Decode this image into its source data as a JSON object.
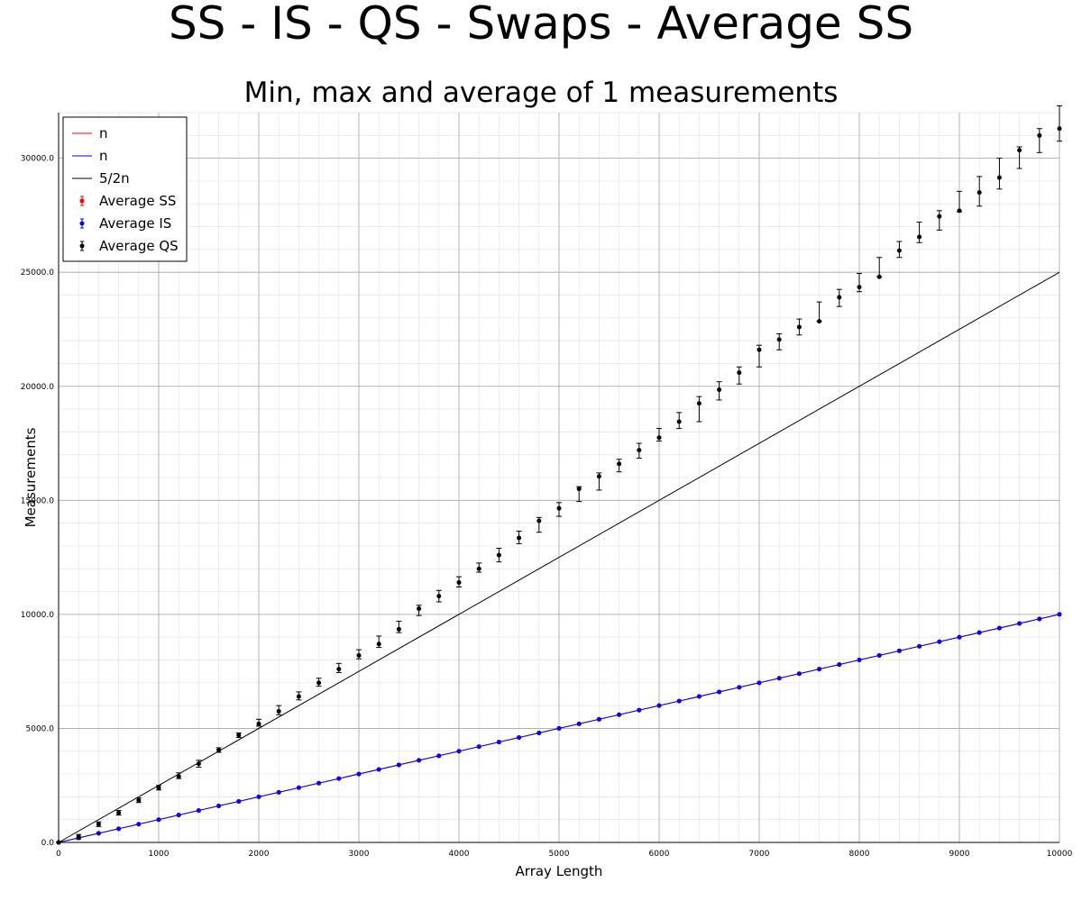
{
  "chart_data": {
    "type": "scatter",
    "title": "SS - IS - QS - Swaps - Average SS",
    "subtitle": "Min, max and average of 1 measurements",
    "xlabel": "Array Length",
    "ylabel": "Measurements",
    "xlim": [
      0,
      10000
    ],
    "ylim": [
      0,
      32000
    ],
    "x_ticks": [
      0,
      1000,
      2000,
      3000,
      4000,
      5000,
      6000,
      7000,
      8000,
      9000,
      10000
    ],
    "y_ticks": [
      0,
      5000,
      10000,
      15000,
      20000,
      25000,
      30000
    ],
    "x_tick_labels": [
      "0",
      "1000",
      "2000",
      "3000",
      "4000",
      "5000",
      "6000",
      "7000",
      "8000",
      "9000",
      "10000"
    ],
    "y_tick_labels": [
      "0.0",
      "5000.0",
      "10000.0",
      "15000.0",
      "20000.0",
      "25000.0",
      "30000.0"
    ],
    "grid": true,
    "legend_position": "top-left",
    "lines": [
      {
        "name": "n",
        "color": "#ff0000",
        "slope": 1
      },
      {
        "name": "n",
        "color": "#0000ff",
        "slope": 1
      },
      {
        "name": "5/2n",
        "color": "#000000",
        "slope": 2.5
      }
    ],
    "series": [
      {
        "name": "Average SS",
        "color": "#ff0000",
        "x": [
          0,
          200,
          400,
          600,
          800,
          1000,
          1200,
          1400,
          1600,
          1800,
          2000,
          2200,
          2400,
          2600,
          2800,
          3000,
          3200,
          3400,
          3600,
          3800,
          4000,
          4200,
          4400,
          4600,
          4800,
          5000,
          5200,
          5400,
          5600,
          5800,
          6000,
          6200,
          6400,
          6600,
          6800,
          7000,
          7200,
          7400,
          7600,
          7800,
          8000,
          8200,
          8400,
          8600,
          8800,
          9000,
          9200,
          9400,
          9600,
          9800,
          10000
        ],
        "y": [
          0,
          200,
          400,
          600,
          800,
          1000,
          1200,
          1400,
          1600,
          1800,
          2000,
          2200,
          2400,
          2600,
          2800,
          3000,
          3200,
          3400,
          3600,
          3800,
          4000,
          4200,
          4400,
          4600,
          4800,
          5000,
          5200,
          5400,
          5600,
          5800,
          6000,
          6200,
          6400,
          6600,
          6800,
          7000,
          7200,
          7400,
          7600,
          7800,
          8000,
          8200,
          8400,
          8600,
          8800,
          9000,
          9200,
          9400,
          9600,
          9800,
          10000
        ]
      },
      {
        "name": "Average IS",
        "color": "#0000ff",
        "x": [
          0,
          200,
          400,
          600,
          800,
          1000,
          1200,
          1400,
          1600,
          1800,
          2000,
          2200,
          2400,
          2600,
          2800,
          3000,
          3200,
          3400,
          3600,
          3800,
          4000,
          4200,
          4400,
          4600,
          4800,
          5000,
          5200,
          5400,
          5600,
          5800,
          6000,
          6200,
          6400,
          6600,
          6800,
          7000,
          7200,
          7400,
          7600,
          7800,
          8000,
          8200,
          8400,
          8600,
          8800,
          9000,
          9200,
          9400,
          9600,
          9800,
          10000
        ],
        "y": [
          0,
          200,
          400,
          600,
          800,
          1000,
          1200,
          1400,
          1600,
          1800,
          2000,
          2200,
          2400,
          2600,
          2800,
          3000,
          3200,
          3400,
          3600,
          3800,
          4000,
          4200,
          4400,
          4600,
          4800,
          5000,
          5200,
          5400,
          5600,
          5800,
          6000,
          6200,
          6400,
          6600,
          6800,
          7000,
          7200,
          7400,
          7600,
          7800,
          8000,
          8200,
          8400,
          8600,
          8800,
          9000,
          9200,
          9400,
          9600,
          9800,
          10000
        ]
      },
      {
        "name": "Average QS",
        "color": "#000000",
        "x": [
          0,
          200,
          400,
          600,
          800,
          1000,
          1200,
          1400,
          1600,
          1800,
          2000,
          2200,
          2400,
          2600,
          2800,
          3000,
          3200,
          3400,
          3600,
          3800,
          4000,
          4200,
          4400,
          4600,
          4800,
          5000,
          5200,
          5400,
          5600,
          5800,
          6000,
          6200,
          6400,
          6600,
          6800,
          7000,
          7200,
          7400,
          7600,
          7800,
          8000,
          8200,
          8400,
          8600,
          8800,
          9000,
          9200,
          9400,
          9600,
          9800,
          10000
        ],
        "y": [
          0,
          250,
          800,
          1300,
          1850,
          2400,
          2900,
          3450,
          4050,
          4700,
          5200,
          5750,
          6400,
          7000,
          7600,
          8200,
          8700,
          9350,
          10250,
          10800,
          11400,
          12000,
          12600,
          13350,
          14100,
          14650,
          15500,
          16050,
          16600,
          17200,
          17750,
          18450,
          19250,
          19850,
          20600,
          21600,
          22050,
          22600,
          22850,
          23900,
          24350,
          24800,
          25950,
          26550,
          27450,
          27700,
          28500,
          29150,
          30350,
          31000,
          31300
        ],
        "y_min": [
          0,
          150,
          700,
          1200,
          1750,
          2300,
          2800,
          3300,
          3950,
          4600,
          5100,
          5600,
          6250,
          6850,
          7450,
          8050,
          8550,
          9200,
          9950,
          10550,
          11200,
          11850,
          12300,
          13100,
          13600,
          14300,
          14950,
          15450,
          16250,
          16850,
          17600,
          18150,
          18450,
          19400,
          20100,
          20850,
          21600,
          22250,
          22850,
          23500,
          24150,
          24800,
          25650,
          26300,
          26850,
          27650,
          27900,
          28650,
          29550,
          30250,
          30750
        ],
        "y_max": [
          0,
          350,
          900,
          1400,
          1950,
          2500,
          3050,
          3600,
          4150,
          4800,
          5400,
          6000,
          6600,
          7200,
          7850,
          8450,
          9050,
          9700,
          10400,
          11050,
          11650,
          12250,
          12900,
          13650,
          14250,
          14900,
          15600,
          16200,
          16800,
          17500,
          18150,
          18850,
          19550,
          20200,
          20850,
          21800,
          22300,
          22950,
          23700,
          24250,
          24950,
          25650,
          26350,
          27200,
          27700,
          28550,
          29200,
          30000,
          30500,
          31300,
          32300
        ]
      }
    ]
  }
}
